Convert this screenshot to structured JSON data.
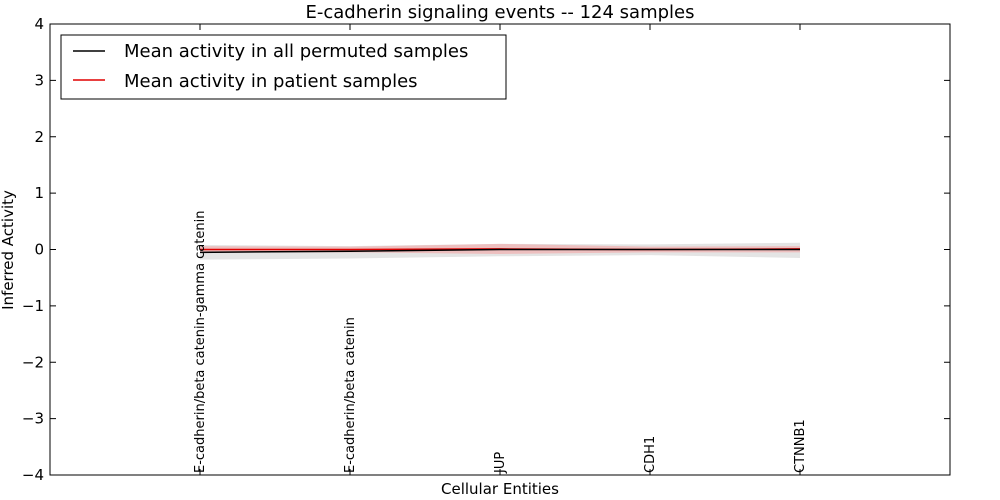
{
  "chart_data": {
    "type": "line",
    "title": "E-cadherin signaling events -- 124 samples",
    "xlabel": "Cellular Entities",
    "ylabel": "Inferred Activity",
    "ylim": [
      -4,
      4
    ],
    "yticks": [
      4,
      3,
      2,
      1,
      0,
      -1,
      -2,
      -3,
      -4
    ],
    "ytick_labels": [
      "4",
      "3",
      "2",
      "1",
      "0",
      "−1",
      "−2",
      "−3",
      "−4"
    ],
    "categories": [
      "E-cadherin/beta catenin-gamma catenin",
      "E-cadherin/beta catenin",
      "JUP",
      "CDH1",
      "CTNNB1"
    ],
    "series": [
      {
        "name": "Mean activity in all permuted samples",
        "color": "#000000",
        "values": [
          -0.05,
          -0.03,
          0.0,
          0.0,
          0.0
        ],
        "band_low": [
          -0.18,
          -0.16,
          -0.12,
          -0.1,
          -0.15
        ],
        "band_high": [
          0.08,
          0.06,
          0.1,
          0.09,
          0.12
        ],
        "band_color": "#d9d9d9"
      },
      {
        "name": "Mean activity in patient samples",
        "color": "#e00000",
        "values": [
          0.0,
          0.0,
          0.01,
          0.0,
          0.01
        ],
        "band_low": [
          -0.06,
          -0.05,
          -0.08,
          -0.05,
          -0.05
        ],
        "band_high": [
          0.06,
          0.05,
          0.1,
          0.05,
          0.06
        ],
        "band_color": "#f4a0a0"
      }
    ],
    "legend_position": "top-left"
  }
}
